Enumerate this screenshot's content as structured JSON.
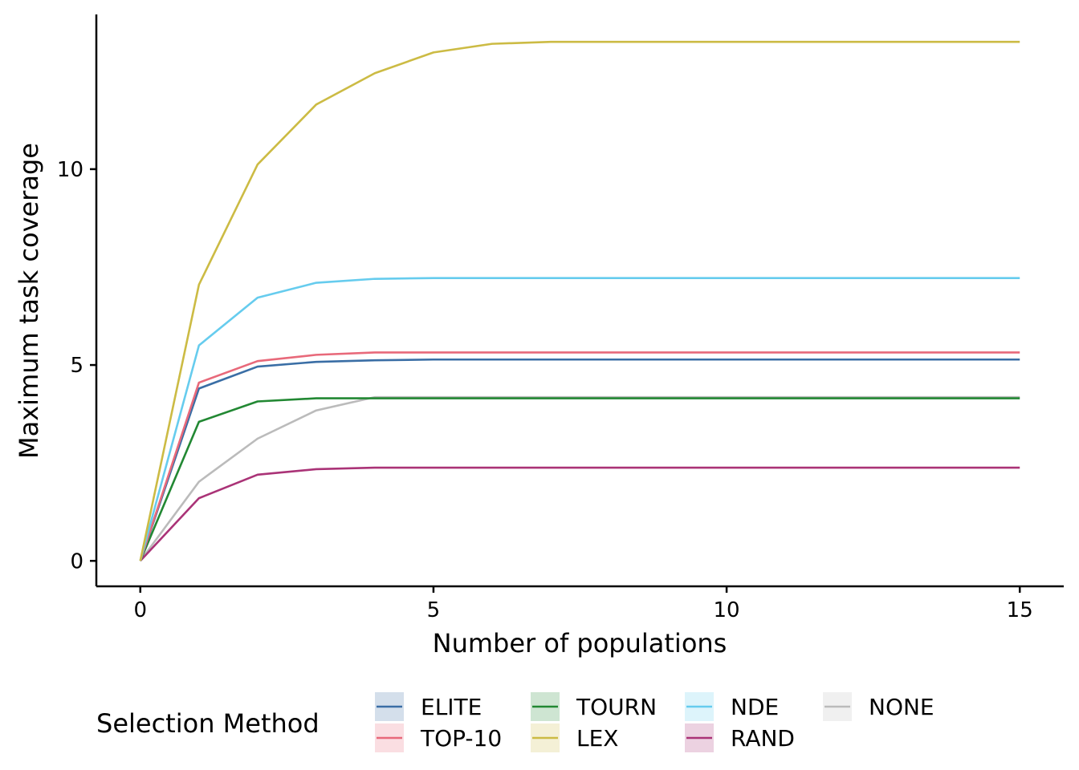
{
  "chart_data": {
    "type": "line",
    "title": "",
    "xlabel": "Number of populations",
    "ylabel": "Maximum task coverage",
    "xlim": [
      -0.75,
      15.75
    ],
    "ylim": [
      -0.65,
      13.95
    ],
    "x_ticks": [
      0,
      5,
      10,
      15
    ],
    "y_ticks": [
      0,
      5,
      10
    ],
    "x_tick_labels": [
      "0",
      "5",
      "10",
      "15"
    ],
    "y_tick_labels": [
      "0",
      "5",
      "10"
    ],
    "grid": false,
    "legend": {
      "title": "Selection Method",
      "position": "bottom"
    },
    "x": [
      0,
      1,
      2,
      3,
      4,
      5,
      6,
      7,
      8,
      9,
      10,
      11,
      12,
      13,
      14,
      15
    ],
    "series": [
      {
        "name": "ELITE",
        "color": "#3a6ea5",
        "values": [
          0,
          4.4,
          4.96,
          5.08,
          5.12,
          5.14,
          5.14,
          5.14,
          5.14,
          5.14,
          5.14,
          5.14,
          5.14,
          5.14,
          5.14,
          5.14
        ]
      },
      {
        "name": "TOP-10",
        "color": "#e8697a",
        "values": [
          0,
          4.55,
          5.1,
          5.26,
          5.32,
          5.32,
          5.32,
          5.32,
          5.32,
          5.32,
          5.32,
          5.32,
          5.32,
          5.32,
          5.32,
          5.32
        ]
      },
      {
        "name": "TOURN",
        "color": "#228833",
        "values": [
          0,
          3.55,
          4.07,
          4.15,
          4.15,
          4.15,
          4.15,
          4.15,
          4.15,
          4.15,
          4.15,
          4.15,
          4.15,
          4.15,
          4.15,
          4.15
        ]
      },
      {
        "name": "LEX",
        "color": "#ccbb44",
        "values": [
          0,
          7.05,
          10.12,
          11.65,
          12.45,
          12.98,
          13.2,
          13.25,
          13.25,
          13.25,
          13.25,
          13.25,
          13.25,
          13.25,
          13.25,
          13.25
        ]
      },
      {
        "name": "NDE",
        "color": "#66ccee",
        "values": [
          0,
          5.5,
          6.72,
          7.1,
          7.2,
          7.22,
          7.22,
          7.22,
          7.22,
          7.22,
          7.22,
          7.22,
          7.22,
          7.22,
          7.22,
          7.22
        ]
      },
      {
        "name": "RAND",
        "color": "#aa3377",
        "values": [
          0,
          1.6,
          2.2,
          2.34,
          2.38,
          2.38,
          2.38,
          2.38,
          2.38,
          2.38,
          2.38,
          2.38,
          2.38,
          2.38,
          2.38,
          2.38
        ]
      },
      {
        "name": "NONE",
        "color": "#bbbbbb",
        "values": [
          0,
          2.02,
          3.12,
          3.84,
          4.18,
          4.18,
          4.18,
          4.18,
          4.18,
          4.18,
          4.18,
          4.18,
          4.18,
          4.18,
          4.18,
          4.18
        ]
      }
    ]
  }
}
